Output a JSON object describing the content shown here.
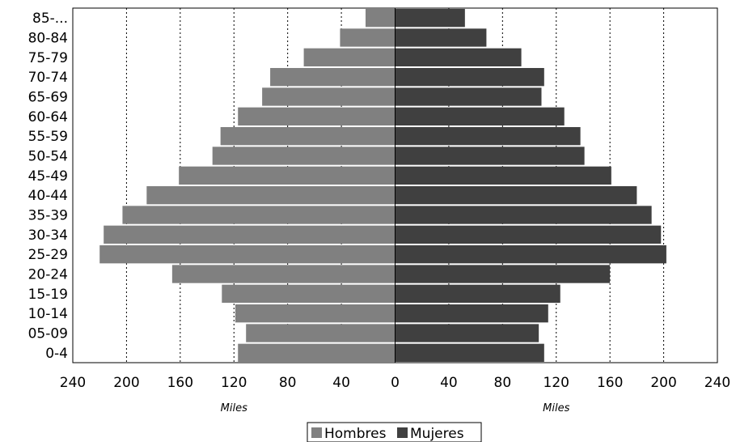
{
  "chart_data": {
    "type": "bar",
    "orientation": "horizontal-pyramid",
    "categories": [
      "85-...",
      "80-84",
      "75-79",
      "70-74",
      "65-69",
      "60-64",
      "55-59",
      "50-54",
      "45-49",
      "40-44",
      "35-39",
      "30-34",
      "25-29",
      "20-24",
      "15-19",
      "10-14",
      "05-09",
      "0-4"
    ],
    "series": [
      {
        "name": "Hombres",
        "color": "#808080",
        "values": [
          22,
          41,
          68,
          93,
          99,
          117,
          130,
          136,
          161,
          185,
          203,
          217,
          220,
          166,
          129,
          119,
          111,
          117
        ]
      },
      {
        "name": "Mujeres",
        "color": "#404040",
        "values": [
          52,
          68,
          94,
          111,
          109,
          126,
          138,
          141,
          161,
          180,
          191,
          198,
          202,
          160,
          123,
          114,
          107,
          111
        ]
      }
    ],
    "xlim": [
      -240,
      240
    ],
    "xticks": [
      240,
      200,
      160,
      120,
      80,
      40,
      0,
      40,
      80,
      120,
      160,
      200,
      240
    ],
    "xlabel_left": "Miles",
    "xlabel_right": "Miles",
    "grid": "vertical-dotted",
    "legend": "bottom-center"
  }
}
